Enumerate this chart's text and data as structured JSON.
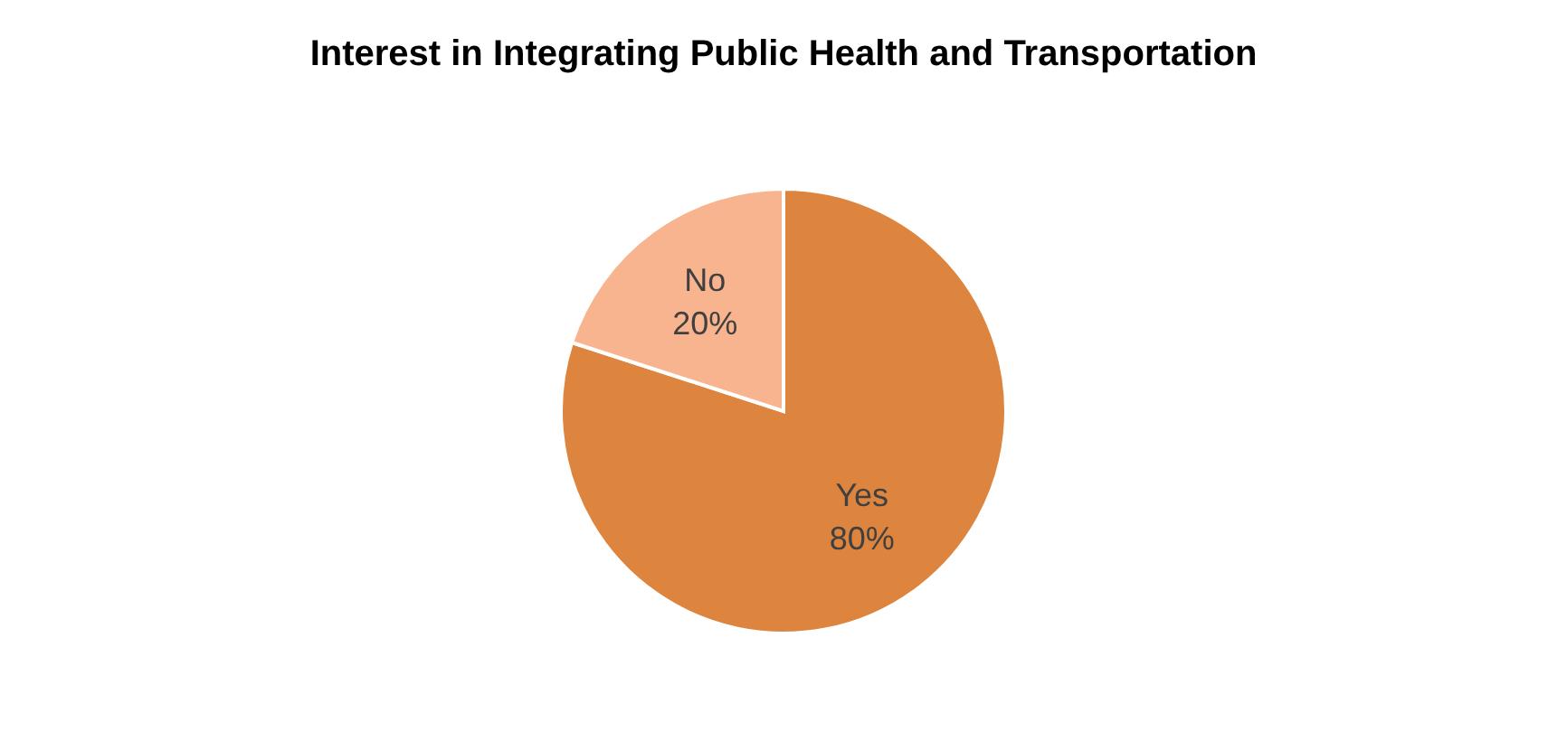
{
  "chart_data": {
    "type": "pie",
    "title": "Interest in Integrating Public Health and Transportation",
    "categories": [
      "Yes",
      "No"
    ],
    "values": [
      80,
      20
    ],
    "colors": [
      "#dd843e",
      "#f8b48e"
    ],
    "value_labels": [
      "80%",
      "20%"
    ],
    "legend": false
  }
}
